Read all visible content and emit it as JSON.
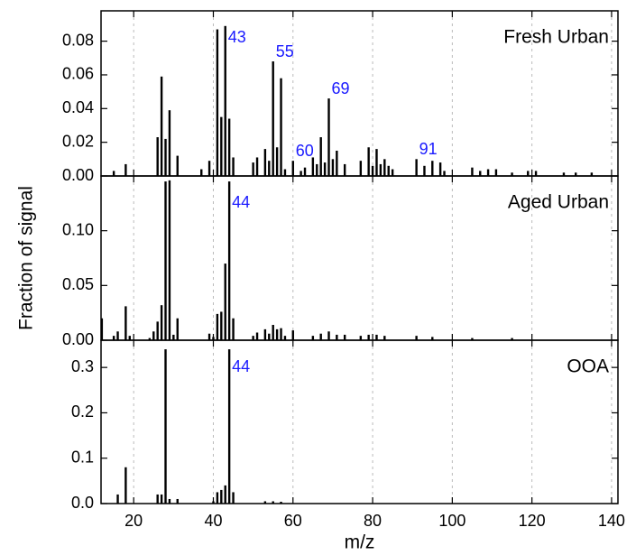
{
  "chart_data": [
    {
      "type": "bar",
      "title": "Fresh Urban",
      "ylabel": null,
      "color": "#000000",
      "annotation_color": "#1a1aff",
      "x": [
        15,
        18,
        26,
        27,
        28,
        29,
        31,
        37,
        39,
        41,
        42,
        43,
        44,
        45,
        50,
        51,
        53,
        54,
        55,
        56,
        57,
        58,
        60,
        62,
        63,
        65,
        66,
        67,
        68,
        69,
        70,
        71,
        73,
        77,
        79,
        80,
        81,
        82,
        83,
        84,
        85,
        91,
        93,
        95,
        97,
        98,
        105,
        107,
        109,
        111,
        115,
        119,
        121,
        128,
        131,
        135
      ],
      "values": [
        0.003,
        0.007,
        0.023,
        0.059,
        0.022,
        0.039,
        0.012,
        0.004,
        0.009,
        0.087,
        0.035,
        0.089,
        0.034,
        0.011,
        0.008,
        0.011,
        0.016,
        0.009,
        0.068,
        0.017,
        0.058,
        0.004,
        0.009,
        0.003,
        0.005,
        0.011,
        0.007,
        0.023,
        0.008,
        0.046,
        0.01,
        0.015,
        0.007,
        0.009,
        0.017,
        0.006,
        0.016,
        0.007,
        0.01,
        0.006,
        0.004,
        0.01,
        0.006,
        0.009,
        0.008,
        0.003,
        0.005,
        0.003,
        0.004,
        0.004,
        0.002,
        0.003,
        0.003,
        0.002,
        0.002,
        0.002
      ],
      "annotations": [
        "43",
        "55",
        "60",
        "69",
        "91"
      ],
      "xlim": [
        11.8,
        141.6
      ],
      "ylim": [
        0,
        0.098
      ],
      "yticks": [
        {
          "value": 0,
          "label": "0.00"
        },
        {
          "value": 0.02,
          "label": "0.02"
        },
        {
          "value": 0.04,
          "label": "0.04"
        },
        {
          "value": 0.06,
          "label": "0.06"
        },
        {
          "value": 0.08,
          "label": "0.08"
        }
      ],
      "grid": true
    },
    {
      "type": "bar",
      "title": "Aged Urban",
      "ylabel": "Fraction of signal",
      "color": "#000000",
      "annotation_color": "#1a1aff",
      "x": [
        12,
        15,
        16,
        18,
        19,
        24,
        25,
        26,
        27,
        28,
        29,
        30,
        31,
        39,
        40,
        41,
        42,
        43,
        44,
        45,
        50,
        51,
        53,
        54,
        55,
        56,
        57,
        58,
        60,
        65,
        67,
        69,
        71,
        73,
        77,
        79,
        81,
        83,
        91,
        95,
        105,
        115
      ],
      "values": [
        0.02,
        0.004,
        0.008,
        0.031,
        0.004,
        0.002,
        0.008,
        0.017,
        0.032,
        0.145,
        0.146,
        0.005,
        0.02,
        0.006,
        0.003,
        0.024,
        0.026,
        0.07,
        0.145,
        0.02,
        0.004,
        0.007,
        0.01,
        0.006,
        0.014,
        0.01,
        0.011,
        0.004,
        0.009,
        0.004,
        0.006,
        0.008,
        0.005,
        0.005,
        0.004,
        0.005,
        0.005,
        0.004,
        0.004,
        0.003,
        0.002,
        0.002
      ],
      "annotations": [
        "44"
      ],
      "xlim": [
        11.8,
        141.6
      ],
      "ylim": [
        0,
        0.15
      ],
      "yticks": [
        {
          "value": 0,
          "label": "0.00"
        },
        {
          "value": 0.05,
          "label": "0.05"
        },
        {
          "value": 0.1,
          "label": "0.10"
        }
      ],
      "grid": true
    },
    {
      "type": "bar",
      "title": "OOA",
      "xlabel": "m/z",
      "color": "#000000",
      "annotation_color": "#1a1aff",
      "x": [
        16,
        18,
        26,
        27,
        28,
        29,
        31,
        40,
        41,
        42,
        43,
        44,
        45,
        53,
        55,
        57
      ],
      "values": [
        0.02,
        0.08,
        0.02,
        0.02,
        0.34,
        0.01,
        0.01,
        0.005,
        0.025,
        0.03,
        0.04,
        0.34,
        0.025,
        0.005,
        0.005,
        0.004
      ],
      "annotations": [
        "44"
      ],
      "xlim": [
        11.8,
        141.6
      ],
      "ylim": [
        0,
        0.36
      ],
      "xticks": [
        20,
        40,
        60,
        80,
        100,
        120,
        140
      ],
      "yticks": [
        {
          "value": 0,
          "label": "0.0"
        },
        {
          "value": 0.1,
          "label": "0.1"
        },
        {
          "value": 0.2,
          "label": "0.2"
        },
        {
          "value": 0.3,
          "label": "0.3"
        }
      ],
      "grid": true
    }
  ]
}
